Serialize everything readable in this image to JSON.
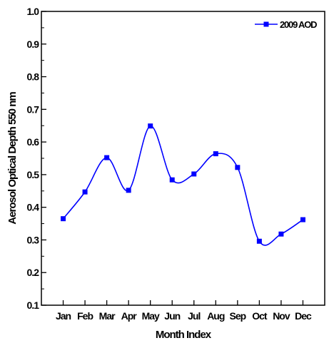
{
  "chart_data": {
    "type": "line",
    "categories": [
      "Jan",
      "Feb",
      "Mar",
      "Apr",
      "May",
      "Jun",
      "Jul",
      "Aug",
      "Sep",
      "Oct",
      "Nov",
      "Dec"
    ],
    "series": [
      {
        "name": "2009 AOD",
        "values": [
          0.365,
          0.447,
          0.552,
          0.452,
          0.649,
          0.484,
          0.502,
          0.564,
          0.522,
          0.296,
          0.318,
          0.362
        ],
        "color": "#0000ff",
        "marker": "square",
        "smoothed": true
      }
    ],
    "xlabel": "Month Index",
    "ylabel": "Aerosol Optical Depth 550 nm",
    "ylim": [
      0.1,
      1.0
    ],
    "yticks": [
      "0.1",
      "0.2",
      "0.3",
      "0.4",
      "0.5",
      "0.6",
      "0.7",
      "0.8",
      "0.9",
      "1.0"
    ],
    "grid": false,
    "legend_position": "top-right"
  }
}
